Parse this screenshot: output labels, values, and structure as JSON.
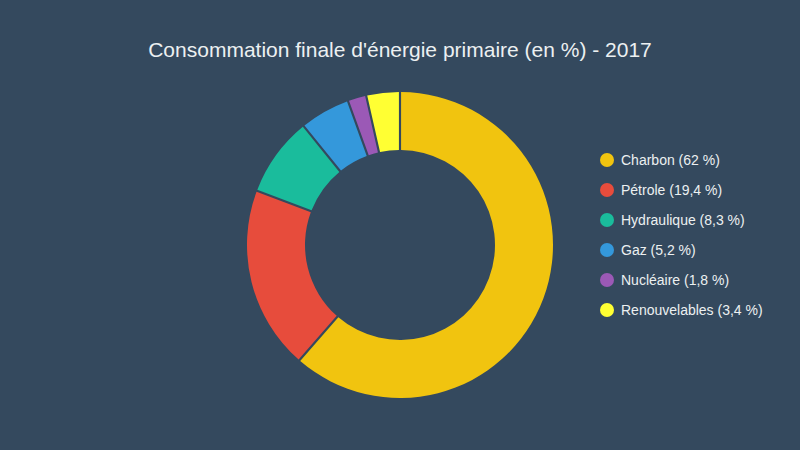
{
  "chart_data": {
    "type": "pie",
    "title": "Consommation finale d'énergie primaire (en %) - 2017",
    "categories": [
      "Charbon (62 %)",
      "Pétrole (19,4 %)",
      "Hydraulique (8,3 %)",
      "Gaz (5,2 %)",
      "Nucléaire (1,8 %)",
      "Renouvelables (3,4 %)"
    ],
    "values": [
      62,
      19.4,
      8.3,
      5.2,
      1.8,
      3.4
    ],
    "colors": [
      "#f1c40f",
      "#e74c3c",
      "#1abc9c",
      "#3498db",
      "#9b59b6",
      "#ffff33"
    ],
    "legend": "right"
  }
}
